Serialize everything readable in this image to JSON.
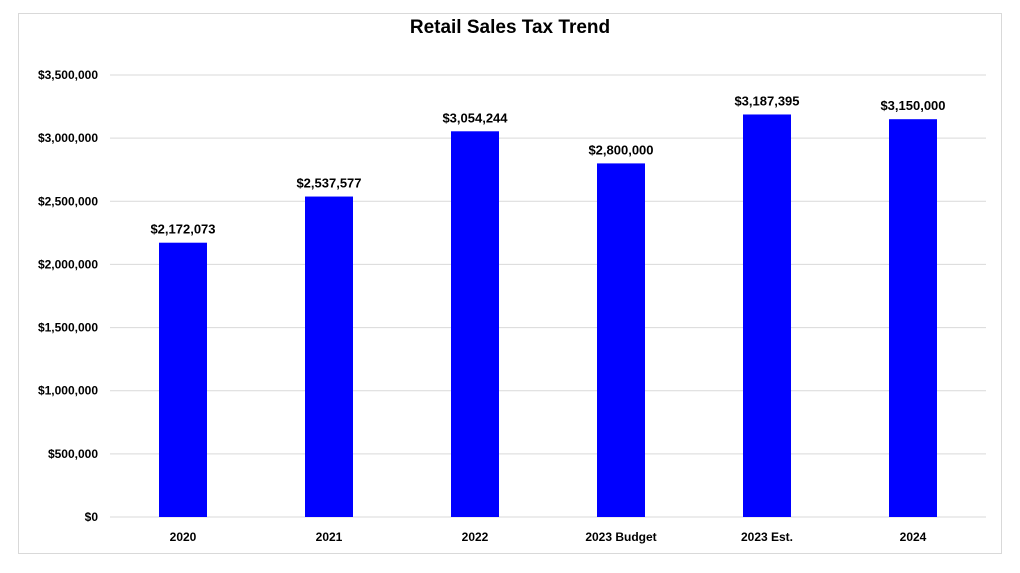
{
  "chart_data": {
    "type": "bar",
    "title": "Retail Sales Tax Trend",
    "xlabel": "",
    "ylabel": "",
    "categories": [
      "2020",
      "2021",
      "2022",
      "2023 Budget",
      "2023 Est.",
      "2024"
    ],
    "values": [
      2172073,
      2537577,
      3054244,
      2800000,
      3187395,
      3150000
    ],
    "value_labels": [
      "$2,172,073",
      "$2,537,577",
      "$3,054,244",
      "$2,800,000",
      "$3,187,395",
      "$3,150,000"
    ],
    "ylim": [
      0,
      3500000
    ],
    "yticks": [
      0,
      500000,
      1000000,
      1500000,
      2000000,
      2500000,
      3000000,
      3500000
    ],
    "ytick_labels": [
      "$0",
      "$500,000",
      "$1,000,000",
      "$1,500,000",
      "$2,000,000",
      "$2,500,000",
      "$3,000,000",
      "$3,500,000"
    ],
    "grid": true,
    "legend": "none",
    "bar_color": "#0000ff",
    "grid_color": "#d9d9d9"
  }
}
